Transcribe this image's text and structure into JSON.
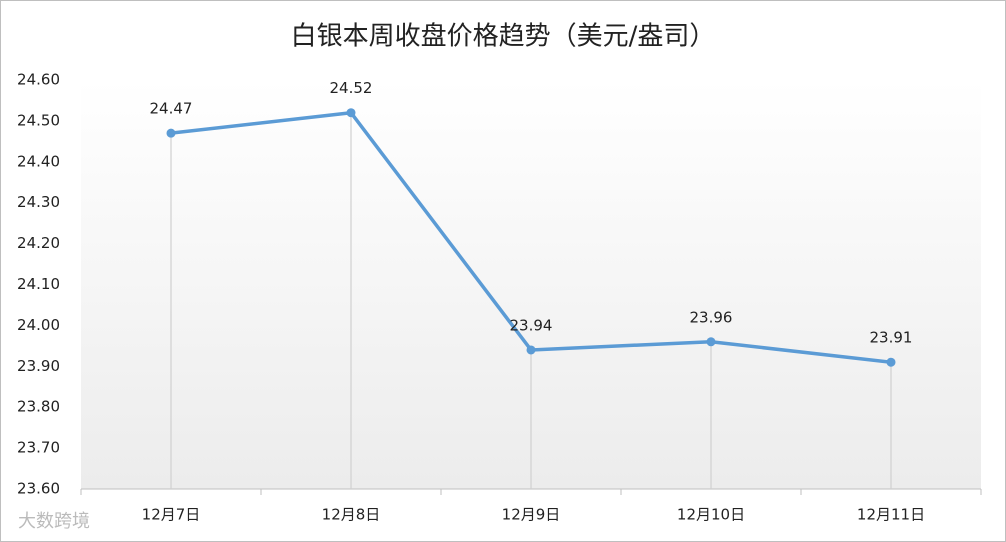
{
  "chart_data": {
    "type": "line",
    "title": "白银本周收盘价格趋势（美元/盎司）",
    "categories": [
      "12月7日",
      "12月8日",
      "12月9日",
      "12月10日",
      "12月11日"
    ],
    "series": [
      {
        "name": "白银",
        "color": "#5b9bd5",
        "values": [
          24.47,
          24.52,
          23.94,
          23.96,
          23.91
        ]
      }
    ],
    "ylim": [
      23.6,
      24.6
    ],
    "yticks": [
      {
        "value": 23.6,
        "label": "23.60"
      },
      {
        "value": 23.7,
        "label": "23.70"
      },
      {
        "value": 23.8,
        "label": "23.80"
      },
      {
        "value": 23.9,
        "label": "23.90"
      },
      {
        "value": 24.0,
        "label": "24.00"
      },
      {
        "value": 24.1,
        "label": "24.10"
      },
      {
        "value": 24.2,
        "label": "24.20"
      },
      {
        "value": 24.3,
        "label": "24.30"
      },
      {
        "value": 24.4,
        "label": "24.40"
      },
      {
        "value": 24.5,
        "label": "24.50"
      },
      {
        "value": 24.6,
        "label": "24.60"
      }
    ],
    "drop_lines": true,
    "data_labels": true,
    "grid": false,
    "watermark": "大数跨境"
  }
}
